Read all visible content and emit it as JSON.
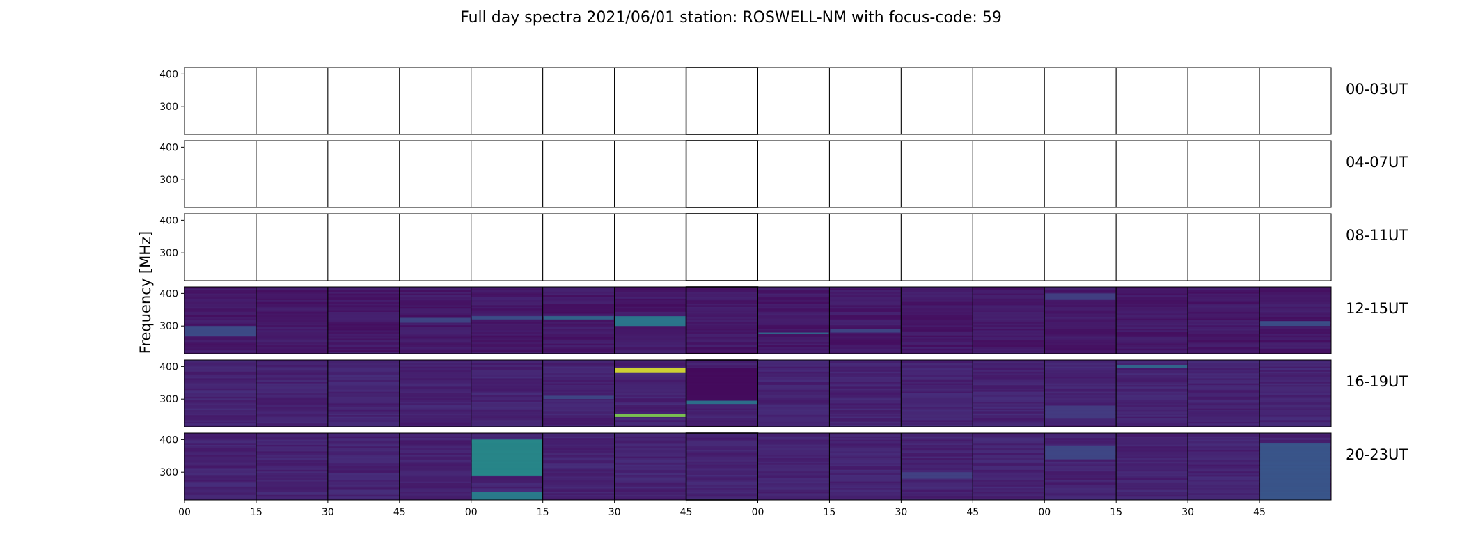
{
  "chart_data": {
    "type": "heatmap",
    "title": "Full day spectra 2021/06/01 station: ROSWELL-NM with focus-code: 59",
    "ylabel": "Frequency [MHz]",
    "xlabel": "",
    "ylim": [
      215,
      420
    ],
    "yticks": [
      {
        "value": 400,
        "label": "400"
      },
      {
        "value": 300,
        "label": "300"
      }
    ],
    "xticks": [
      "00",
      "15",
      "30",
      "45",
      "00",
      "15",
      "30",
      "45",
      "00",
      "15",
      "30",
      "45",
      "00",
      "15",
      "30",
      "45"
    ],
    "panels_per_row": 16,
    "minutes_per_panel": 15,
    "colormap": [
      "#440154",
      "#46327e",
      "#365c8d",
      "#277f8e",
      "#1fa187",
      "#4ac16d",
      "#a0da39",
      "#fde725"
    ],
    "rows": [
      {
        "label": "00-03UT",
        "has_data": false,
        "base_level": 0,
        "features": []
      },
      {
        "label": "04-07UT",
        "has_data": false,
        "base_level": 0,
        "features": []
      },
      {
        "label": "08-11UT",
        "has_data": false,
        "base_level": 0,
        "features": []
      },
      {
        "label": "12-15UT",
        "has_data": true,
        "base_level": 0.07,
        "features": [
          {
            "panel": 0,
            "f_min": 270,
            "f_max": 300,
            "level": 0.24
          },
          {
            "panel": 3,
            "f_min": 310,
            "f_max": 325,
            "level": 0.22
          },
          {
            "panel": 4,
            "f_min": 320,
            "f_max": 330,
            "level": 0.25
          },
          {
            "panel": 5,
            "f_min": 320,
            "f_max": 330,
            "level": 0.35
          },
          {
            "panel": 6,
            "f_min": 300,
            "f_max": 330,
            "level": 0.42
          },
          {
            "panel": 8,
            "f_min": 275,
            "f_max": 280,
            "level": 0.35
          },
          {
            "panel": 9,
            "f_min": 280,
            "f_max": 290,
            "level": 0.22
          },
          {
            "panel": 12,
            "f_min": 380,
            "f_max": 400,
            "level": 0.2
          },
          {
            "panel": 15,
            "f_min": 300,
            "f_max": 315,
            "level": 0.25
          }
        ]
      },
      {
        "label": "16-19UT",
        "has_data": true,
        "base_level": 0.1,
        "features": [
          {
            "panel": 5,
            "f_min": 300,
            "f_max": 310,
            "level": 0.22
          },
          {
            "panel": 6,
            "f_min": 380,
            "f_max": 395,
            "level": 0.95
          },
          {
            "panel": 6,
            "f_min": 245,
            "f_max": 255,
            "level": 0.8
          },
          {
            "panel": 7,
            "f_min": 290,
            "f_max": 395,
            "level": 0.02
          },
          {
            "panel": 7,
            "f_min": 285,
            "f_max": 295,
            "level": 0.4
          },
          {
            "panel": 12,
            "f_min": 240,
            "f_max": 280,
            "level": 0.18
          },
          {
            "panel": 13,
            "f_min": 395,
            "f_max": 405,
            "level": 0.35
          }
        ]
      },
      {
        "label": "20-23UT",
        "has_data": true,
        "base_level": 0.1,
        "features": [
          {
            "panel": 4,
            "f_min": 290,
            "f_max": 400,
            "level": 0.5
          },
          {
            "panel": 4,
            "f_min": 215,
            "f_max": 240,
            "level": 0.45
          },
          {
            "panel": 10,
            "f_min": 280,
            "f_max": 300,
            "level": 0.2
          },
          {
            "panel": 12,
            "f_min": 340,
            "f_max": 380,
            "level": 0.22
          },
          {
            "panel": 15,
            "f_min": 215,
            "f_max": 390,
            "level": 0.28
          }
        ]
      }
    ]
  }
}
